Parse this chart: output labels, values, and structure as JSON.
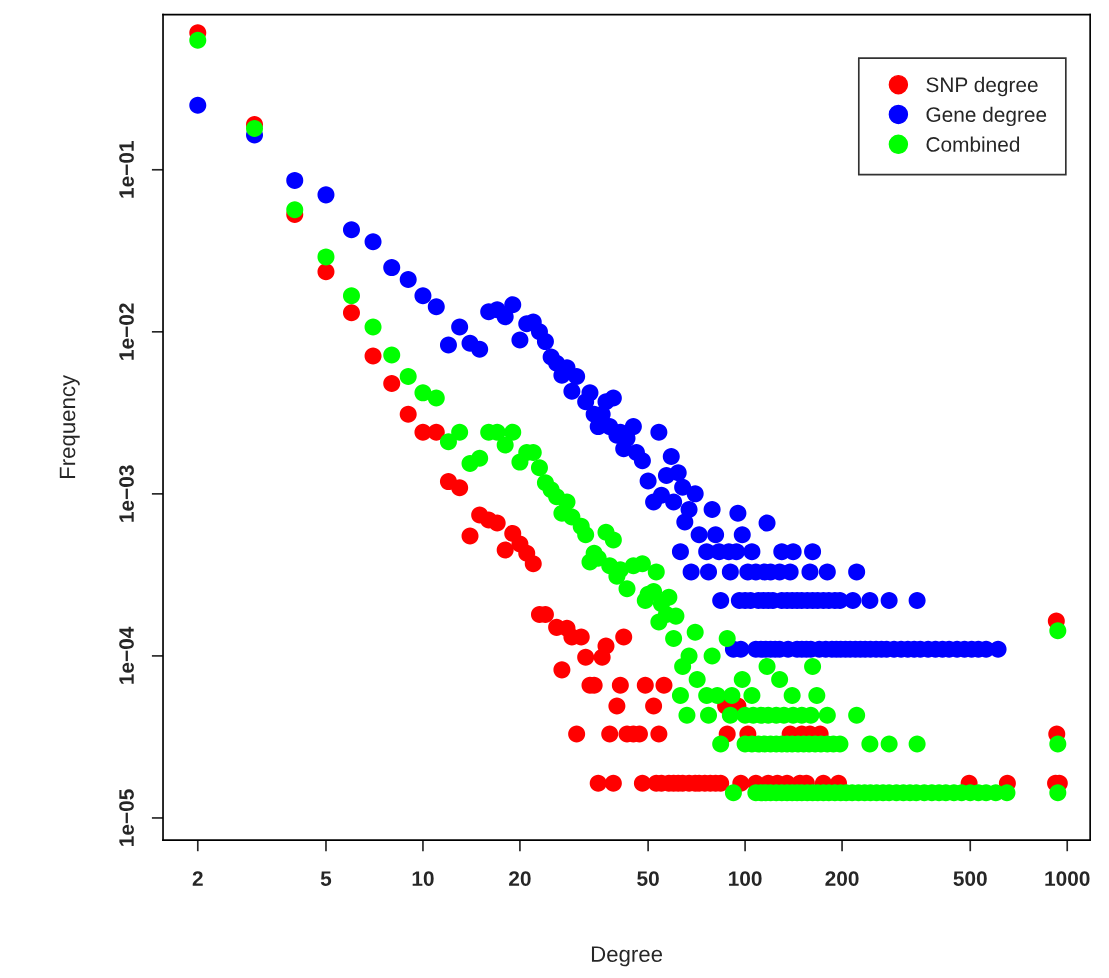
{
  "chart_data": {
    "type": "scatter",
    "xlabel": "Degree",
    "ylabel": "Frequency",
    "log": "xy",
    "marker": "circle",
    "legend": "top right",
    "grid": false,
    "xlim": [
      1.56,
      1178
    ],
    "ylim": [
      7.3e-06,
      0.906
    ],
    "xticks": [
      2,
      5,
      10,
      20,
      50,
      100,
      200,
      500,
      1000
    ],
    "yticks": [
      {
        "value": 1e-05,
        "label": "1e−05"
      },
      {
        "value": 0.0001,
        "label": "1e−04"
      },
      {
        "value": 0.001,
        "label": "1e−03"
      },
      {
        "value": 0.01,
        "label": "1e−02"
      },
      {
        "value": 0.1,
        "label": "1e−01"
      }
    ],
    "series": [
      {
        "name": "SNP degree",
        "color": "#ff0000",
        "x": [
          2,
          3,
          4,
          5,
          6,
          7,
          8,
          9,
          10,
          11,
          12,
          13,
          14,
          15,
          16,
          17,
          18,
          19,
          20,
          21,
          22,
          23,
          24,
          26,
          27,
          28,
          29,
          30,
          31,
          32,
          33,
          34,
          35,
          36,
          37,
          38,
          39,
          40,
          41,
          42,
          43,
          45,
          47,
          48,
          49,
          52,
          53,
          54,
          55,
          56,
          58,
          60,
          62,
          64,
          67,
          70,
          72,
          75,
          78,
          81,
          84,
          87,
          88,
          95,
          97,
          102,
          108,
          118,
          126,
          135,
          138,
          148,
          150,
          155,
          159,
          171,
          175,
          195,
          496,
          652,
          920,
          925,
          928,
          945
        ],
        "values": [
          0.7,
          0.19,
          0.053,
          0.0235,
          0.0131,
          0.0071,
          0.0048,
          0.0031,
          0.0024,
          0.0024,
          0.00119,
          0.00109,
          0.00055,
          0.00074,
          0.00069,
          0.00066,
          0.00045,
          0.00057,
          0.00049,
          0.00043,
          0.00037,
          0.00018,
          0.00018,
          0.00015,
          8.2e-05,
          0.000148,
          0.000131,
          3.3e-05,
          0.000131,
          9.8e-05,
          6.6e-05,
          6.6e-05,
          1.64e-05,
          9.8e-05,
          0.000115,
          3.3e-05,
          1.64e-05,
          4.9e-05,
          6.6e-05,
          0.000131,
          3.3e-05,
          3.3e-05,
          3.3e-05,
          1.64e-05,
          6.6e-05,
          4.9e-05,
          1.64e-05,
          3.3e-05,
          1.64e-05,
          6.6e-05,
          1.64e-05,
          1.64e-05,
          1.64e-05,
          1.64e-05,
          1.64e-05,
          1.64e-05,
          1.64e-05,
          1.64e-05,
          1.64e-05,
          1.64e-05,
          1.64e-05,
          4.9e-05,
          3.3e-05,
          4.9e-05,
          1.64e-05,
          3.3e-05,
          1.64e-05,
          1.64e-05,
          1.64e-05,
          1.64e-05,
          3.3e-05,
          1.64e-05,
          3.3e-05,
          1.64e-05,
          3.3e-05,
          3.3e-05,
          1.64e-05,
          1.64e-05,
          1.64e-05,
          1.64e-05,
          1.64e-05,
          0.000164,
          3.3e-05,
          1.64e-05
        ]
      },
      {
        "name": "Gene degree",
        "color": "#0000ff",
        "x": [
          2,
          3,
          4,
          5,
          6,
          7,
          8,
          9,
          10,
          11,
          12,
          13,
          14,
          15,
          16,
          17,
          18,
          19,
          20,
          21,
          22,
          23,
          24,
          25,
          26,
          27,
          28,
          29,
          30,
          32,
          33,
          34,
          35,
          36,
          37,
          38,
          39,
          40,
          41,
          42,
          43,
          45,
          46,
          48,
          50,
          52,
          54,
          55,
          57,
          59,
          60,
          62,
          63,
          64,
          65,
          67,
          68,
          70,
          72,
          76,
          77,
          79,
          81,
          83,
          84,
          89,
          90,
          92,
          94,
          95,
          96,
          97,
          98,
          100,
          102,
          104,
          105,
          108,
          108,
          110,
          112,
          114,
          115,
          116,
          117,
          118,
          120,
          120,
          122,
          124,
          128,
          128,
          130,
          130,
          135,
          136,
          138,
          140,
          141,
          145,
          145,
          150,
          150,
          155,
          156,
          159,
          160,
          162,
          162,
          168,
          175,
          180,
          182,
          186,
          190,
          192,
          197,
          198,
          205,
          212,
          216,
          220,
          222,
          228,
          236,
          244,
          245,
          255,
          265,
          275,
          280,
          290,
          305,
          320,
          335,
          342,
          350,
          370,
          390,
          410,
          430,
          455,
          480,
          505,
          530,
          560,
          610,
          170,
          178
        ],
        "values": [
          0.25,
          0.164,
          0.086,
          0.07,
          0.0426,
          0.036,
          0.0249,
          0.021,
          0.0167,
          0.0143,
          0.0083,
          0.0107,
          0.0085,
          0.0078,
          0.0133,
          0.0137,
          0.0124,
          0.0147,
          0.0089,
          0.0112,
          0.0115,
          0.01,
          0.0087,
          0.007,
          0.0064,
          0.0054,
          0.006,
          0.0043,
          0.0053,
          0.0037,
          0.0042,
          0.0031,
          0.0026,
          0.0031,
          0.0037,
          0.0026,
          0.0039,
          0.0023,
          0.0024,
          0.0019,
          0.0022,
          0.0026,
          0.0018,
          0.0016,
          0.0012,
          0.00089,
          0.0024,
          0.00098,
          0.0013,
          0.0017,
          0.00089,
          0.00135,
          0.00044,
          0.0011,
          0.00067,
          0.0008,
          0.00033,
          0.001,
          0.00056,
          0.00044,
          0.00033,
          0.0008,
          0.00056,
          0.00044,
          0.00022,
          0.00044,
          0.00033,
          0.00011,
          0.00044,
          0.00076,
          0.00022,
          0.00011,
          0.00056,
          0.00022,
          0.00033,
          0.00022,
          0.00044,
          0.00033,
          0.00011,
          0.00022,
          0.00011,
          0.00022,
          0.00033,
          0.00011,
          0.00066,
          0.00022,
          0.00033,
          0.00011,
          0.00022,
          0.00011,
          0.00033,
          0.00011,
          0.00044,
          0.00022,
          0.00022,
          0.00011,
          0.00033,
          0.00022,
          0.00044,
          0.00022,
          0.00011,
          0.00022,
          0.00011,
          0.00011,
          0.00022,
          0.00033,
          0.00011,
          0.00044,
          0.00022,
          0.00022,
          0.00022,
          0.00033,
          0.00022,
          0.00011,
          0.00022,
          0.00011,
          0.00022,
          0.00011,
          0.00011,
          0.00011,
          0.00022,
          0.00011,
          0.00033,
          0.00011,
          0.00011,
          0.00022,
          0.00011,
          0.00011,
          0.00011,
          0.00011,
          0.00022,
          0.00011,
          0.00011,
          0.00011,
          0.00011,
          0.00022,
          0.00011,
          0.00011,
          0.00011,
          0.00011,
          0.00011,
          0.00011,
          0.00011,
          0.00011,
          0.00011,
          0.00011,
          0.00011,
          0.00011,
          0.00011
        ]
      },
      {
        "name": "Combined",
        "color": "#00ff00",
        "x": [
          2,
          3,
          4,
          5,
          6,
          7,
          8,
          9,
          10,
          11,
          12,
          13,
          14,
          15,
          16,
          17,
          18,
          19,
          20,
          21,
          22,
          23,
          24,
          25,
          26,
          27,
          28,
          29,
          31,
          32,
          33,
          34,
          35,
          37,
          38,
          39,
          40,
          41,
          43,
          45,
          48,
          49,
          50,
          52,
          53,
          54,
          55,
          57,
          58,
          60,
          61,
          63,
          64,
          66,
          67,
          70,
          71,
          76,
          77,
          79,
          82,
          84,
          88,
          90,
          91,
          92,
          98,
          100,
          100,
          105,
          105,
          106,
          108,
          110,
          112,
          112,
          115,
          116,
          117,
          118,
          120,
          120,
          125,
          125,
          125,
          128,
          130,
          130,
          132,
          135,
          135,
          140,
          140,
          140,
          141,
          145,
          146,
          150,
          150,
          152,
          156,
          158,
          160,
          162,
          162,
          165,
          167,
          168,
          172,
          175,
          180,
          180,
          182,
          188,
          190,
          197,
          198,
          206,
          215,
          222,
          225,
          235,
          244,
          245,
          256,
          268,
          280,
          280,
          295,
          310,
          325,
          340,
          342,
          360,
          380,
          400,
          420,
          445,
          470,
          500,
          530,
          560,
          600,
          650,
          935,
          935,
          935
        ],
        "values": [
          0.63,
          0.18,
          0.0566,
          0.029,
          0.0167,
          0.0107,
          0.0072,
          0.0053,
          0.0042,
          0.0039,
          0.0021,
          0.0024,
          0.00154,
          0.00166,
          0.0024,
          0.0024,
          0.002,
          0.0024,
          0.00157,
          0.0018,
          0.0018,
          0.00145,
          0.00117,
          0.00106,
          0.00096,
          0.00076,
          0.00089,
          0.00072,
          0.00063,
          0.00056,
          0.00038,
          0.00043,
          0.0004,
          0.00058,
          0.00036,
          0.00052,
          0.00031,
          0.00034,
          0.00026,
          0.00036,
          0.00037,
          0.00022,
          0.00024,
          0.00025,
          0.00033,
          0.000162,
          0.00021,
          0.00018,
          0.00023,
          0.000128,
          0.000176,
          5.7e-05,
          8.6e-05,
          4.3e-05,
          0.0001,
          0.00014,
          7.15e-05,
          5.7e-05,
          4.3e-05,
          0.0001,
          5.7e-05,
          2.86e-05,
          0.000128,
          4.3e-05,
          5.7e-05,
          1.43e-05,
          7.15e-05,
          4.3e-05,
          2.86e-05,
          5.7e-05,
          2.86e-05,
          4.3e-05,
          1.43e-05,
          2.86e-05,
          4.3e-05,
          1.43e-05,
          2.86e-05,
          1.43e-05,
          8.6e-05,
          4.3e-05,
          2.86e-05,
          1.43e-05,
          4.3e-05,
          2.86e-05,
          1.43e-05,
          7.15e-05,
          2.86e-05,
          1.43e-05,
          4.3e-05,
          2.86e-05,
          1.43e-05,
          5.7e-05,
          2.86e-05,
          1.43e-05,
          4.3e-05,
          1.43e-05,
          2.86e-05,
          4.3e-05,
          1.43e-05,
          2.86e-05,
          1.43e-05,
          2.86e-05,
          4.3e-05,
          8.6e-05,
          1.43e-05,
          2.86e-05,
          5.7e-05,
          1.43e-05,
          2.86e-05,
          1.43e-05,
          4.3e-05,
          2.86e-05,
          1.43e-05,
          2.86e-05,
          1.43e-05,
          2.86e-05,
          1.43e-05,
          1.43e-05,
          1.43e-05,
          4.3e-05,
          1.43e-05,
          1.43e-05,
          2.86e-05,
          1.43e-05,
          1.43e-05,
          1.43e-05,
          2.86e-05,
          1.43e-05,
          1.43e-05,
          1.43e-05,
          1.43e-05,
          1.43e-05,
          2.86e-05,
          1.43e-05,
          1.43e-05,
          1.43e-05,
          1.43e-05,
          1.43e-05,
          1.43e-05,
          1.43e-05,
          1.43e-05,
          1.43e-05,
          1.43e-05,
          1.43e-05,
          0.000143,
          2.86e-05,
          1.43e-05
        ]
      }
    ]
  }
}
